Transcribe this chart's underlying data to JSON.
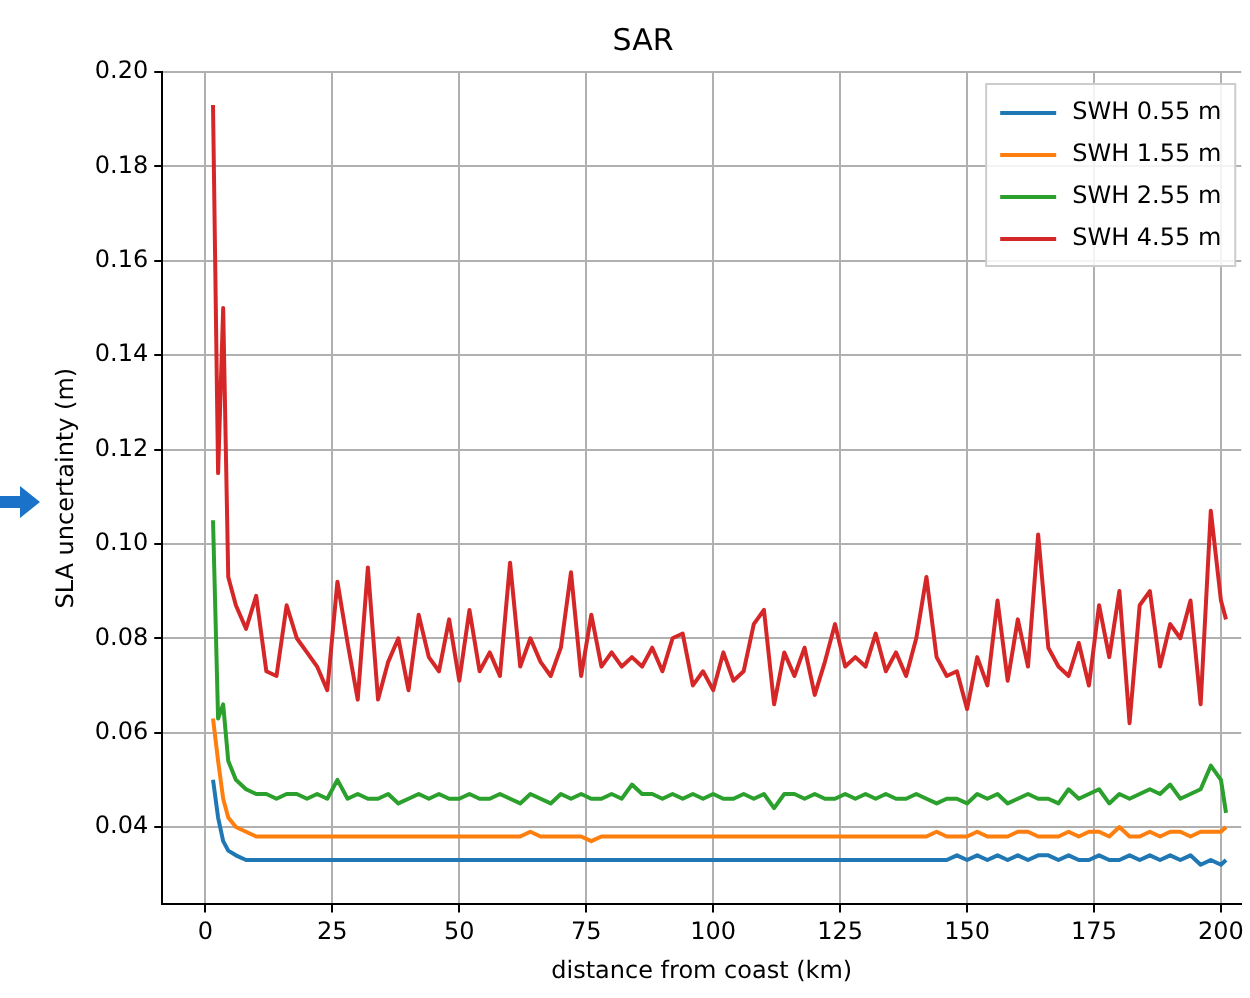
{
  "chart_data": {
    "type": "line",
    "title": "SAR",
    "xlabel": "distance from coast (km)",
    "ylabel": "SLA uncertainty (m)",
    "xlim": [
      -8.5,
      204
    ],
    "xticks": [
      0,
      25,
      50,
      75,
      100,
      125,
      150,
      175,
      200
    ],
    "ylim": [
      0.0236,
      0.2
    ],
    "yticks": [
      {
        "value": 0.04,
        "label": "0.04"
      },
      {
        "value": 0.06,
        "label": "0.06"
      },
      {
        "value": 0.08,
        "label": "0.08"
      },
      {
        "value": 0.1,
        "label": "0.10"
      },
      {
        "value": 0.12,
        "label": "0.12"
      },
      {
        "value": 0.14,
        "label": "0.14"
      },
      {
        "value": 0.16,
        "label": "0.16"
      },
      {
        "value": 0.18,
        "label": "0.18"
      },
      {
        "value": 0.2,
        "label": "0.20"
      }
    ],
    "grid": true,
    "legend": "top right",
    "x": [
      1.5,
      2.5,
      3.5,
      4.5,
      6,
      8,
      10,
      12,
      14,
      16,
      18,
      20,
      22,
      24,
      26,
      28,
      30,
      32,
      34,
      36,
      38,
      40,
      42,
      44,
      46,
      48,
      50,
      52,
      54,
      56,
      58,
      60,
      62,
      64,
      66,
      68,
      70,
      72,
      74,
      76,
      78,
      80,
      82,
      84,
      86,
      88,
      90,
      92,
      94,
      96,
      98,
      100,
      102,
      104,
      106,
      108,
      110,
      112,
      114,
      116,
      118,
      120,
      122,
      124,
      126,
      128,
      130,
      132,
      134,
      136,
      138,
      140,
      142,
      144,
      146,
      148,
      150,
      152,
      154,
      156,
      158,
      160,
      162,
      164,
      166,
      168,
      170,
      172,
      174,
      176,
      178,
      180,
      182,
      184,
      186,
      188,
      190,
      192,
      194,
      196,
      198,
      200,
      201
    ],
    "series": [
      {
        "name": "SWH 0.55 m",
        "color": "#1f77b4",
        "values": [
          0.05,
          0.042,
          0.037,
          0.035,
          0.034,
          0.033,
          0.033,
          0.033,
          0.033,
          0.033,
          0.033,
          0.033,
          0.033,
          0.033,
          0.033,
          0.033,
          0.033,
          0.033,
          0.033,
          0.033,
          0.033,
          0.033,
          0.033,
          0.033,
          0.033,
          0.033,
          0.033,
          0.033,
          0.033,
          0.033,
          0.033,
          0.033,
          0.033,
          0.033,
          0.033,
          0.033,
          0.033,
          0.033,
          0.033,
          0.033,
          0.033,
          0.033,
          0.033,
          0.033,
          0.033,
          0.033,
          0.033,
          0.033,
          0.033,
          0.033,
          0.033,
          0.033,
          0.033,
          0.033,
          0.033,
          0.033,
          0.033,
          0.033,
          0.033,
          0.033,
          0.033,
          0.033,
          0.033,
          0.033,
          0.033,
          0.033,
          0.033,
          0.033,
          0.033,
          0.033,
          0.033,
          0.033,
          0.033,
          0.033,
          0.033,
          0.034,
          0.033,
          0.034,
          0.033,
          0.034,
          0.033,
          0.034,
          0.033,
          0.034,
          0.034,
          0.033,
          0.034,
          0.033,
          0.033,
          0.034,
          0.033,
          0.033,
          0.034,
          0.033,
          0.034,
          0.033,
          0.034,
          0.033,
          0.034,
          0.032,
          0.033,
          0.032,
          0.033
        ]
      },
      {
        "name": "SWH 1.55 m",
        "color": "#ff7f0e",
        "values": [
          0.063,
          0.054,
          0.046,
          0.042,
          0.04,
          0.039,
          0.038,
          0.038,
          0.038,
          0.038,
          0.038,
          0.038,
          0.038,
          0.038,
          0.038,
          0.038,
          0.038,
          0.038,
          0.038,
          0.038,
          0.038,
          0.038,
          0.038,
          0.038,
          0.038,
          0.038,
          0.038,
          0.038,
          0.038,
          0.038,
          0.038,
          0.038,
          0.038,
          0.039,
          0.038,
          0.038,
          0.038,
          0.038,
          0.038,
          0.037,
          0.038,
          0.038,
          0.038,
          0.038,
          0.038,
          0.038,
          0.038,
          0.038,
          0.038,
          0.038,
          0.038,
          0.038,
          0.038,
          0.038,
          0.038,
          0.038,
          0.038,
          0.038,
          0.038,
          0.038,
          0.038,
          0.038,
          0.038,
          0.038,
          0.038,
          0.038,
          0.038,
          0.038,
          0.038,
          0.038,
          0.038,
          0.038,
          0.038,
          0.039,
          0.038,
          0.038,
          0.038,
          0.039,
          0.038,
          0.038,
          0.038,
          0.039,
          0.039,
          0.038,
          0.038,
          0.038,
          0.039,
          0.038,
          0.039,
          0.039,
          0.038,
          0.04,
          0.038,
          0.038,
          0.039,
          0.038,
          0.039,
          0.039,
          0.038,
          0.039,
          0.039,
          0.039,
          0.04
        ]
      },
      {
        "name": "SWH 2.55 m",
        "color": "#2ca02c",
        "values": [
          0.105,
          0.063,
          0.066,
          0.054,
          0.05,
          0.048,
          0.047,
          0.047,
          0.046,
          0.047,
          0.047,
          0.046,
          0.047,
          0.046,
          0.05,
          0.046,
          0.047,
          0.046,
          0.046,
          0.047,
          0.045,
          0.046,
          0.047,
          0.046,
          0.047,
          0.046,
          0.046,
          0.047,
          0.046,
          0.046,
          0.047,
          0.046,
          0.045,
          0.047,
          0.046,
          0.045,
          0.047,
          0.046,
          0.047,
          0.046,
          0.046,
          0.047,
          0.046,
          0.049,
          0.047,
          0.047,
          0.046,
          0.047,
          0.046,
          0.047,
          0.046,
          0.047,
          0.046,
          0.046,
          0.047,
          0.046,
          0.047,
          0.044,
          0.047,
          0.047,
          0.046,
          0.047,
          0.046,
          0.046,
          0.047,
          0.046,
          0.047,
          0.046,
          0.047,
          0.046,
          0.046,
          0.047,
          0.046,
          0.045,
          0.046,
          0.046,
          0.045,
          0.047,
          0.046,
          0.047,
          0.045,
          0.046,
          0.047,
          0.046,
          0.046,
          0.045,
          0.048,
          0.046,
          0.047,
          0.048,
          0.045,
          0.047,
          0.046,
          0.047,
          0.048,
          0.047,
          0.049,
          0.046,
          0.047,
          0.048,
          0.053,
          0.05,
          0.043
        ]
      },
      {
        "name": "SWH 4.55 m",
        "color": "#d62728",
        "values": [
          0.193,
          0.115,
          0.15,
          0.093,
          0.087,
          0.082,
          0.089,
          0.073,
          0.072,
          0.087,
          0.08,
          0.077,
          0.074,
          0.069,
          0.092,
          0.079,
          0.067,
          0.095,
          0.067,
          0.075,
          0.08,
          0.069,
          0.085,
          0.076,
          0.073,
          0.084,
          0.071,
          0.086,
          0.073,
          0.077,
          0.072,
          0.096,
          0.074,
          0.08,
          0.075,
          0.072,
          0.078,
          0.094,
          0.072,
          0.085,
          0.074,
          0.077,
          0.074,
          0.076,
          0.074,
          0.078,
          0.073,
          0.08,
          0.081,
          0.07,
          0.073,
          0.069,
          0.077,
          0.071,
          0.073,
          0.083,
          0.086,
          0.066,
          0.077,
          0.072,
          0.078,
          0.068,
          0.075,
          0.083,
          0.074,
          0.076,
          0.074,
          0.081,
          0.073,
          0.077,
          0.072,
          0.08,
          0.093,
          0.076,
          0.072,
          0.073,
          0.065,
          0.076,
          0.07,
          0.088,
          0.071,
          0.084,
          0.074,
          0.102,
          0.078,
          0.074,
          0.072,
          0.079,
          0.07,
          0.087,
          0.076,
          0.09,
          0.062,
          0.087,
          0.09,
          0.074,
          0.083,
          0.08,
          0.088,
          0.066,
          0.107,
          0.088,
          0.084
        ]
      }
    ]
  }
}
